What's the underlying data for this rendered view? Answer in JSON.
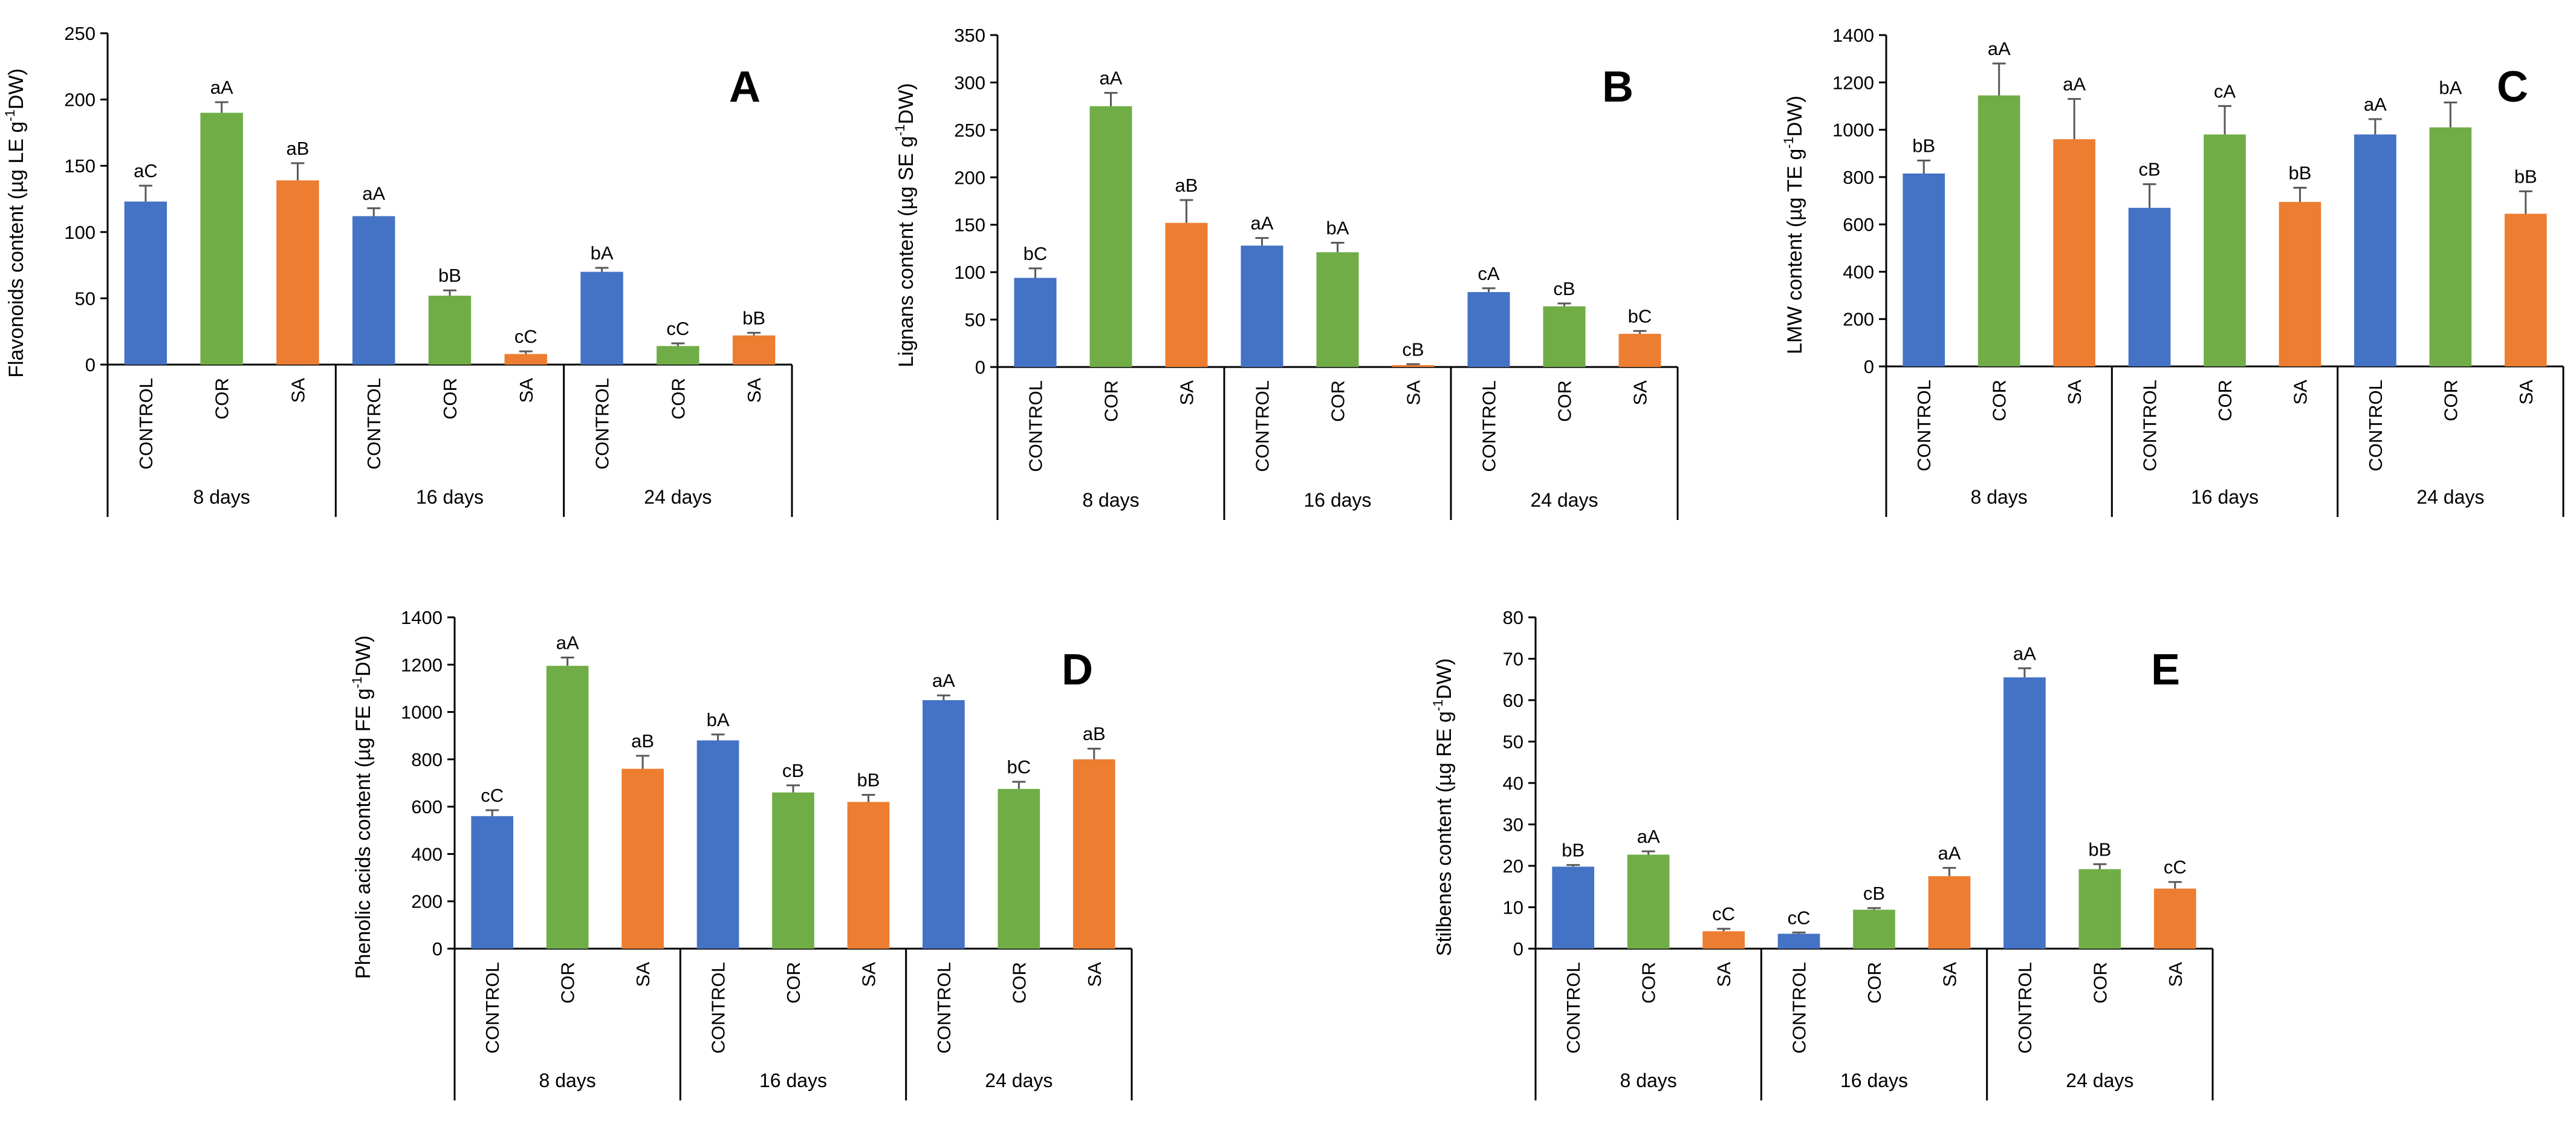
{
  "colors": {
    "CONTROL": "#4472C4",
    "COR": "#70AD47",
    "SA": "#ED7D31"
  },
  "chart_data": [
    {
      "panel": "A",
      "type": "bar",
      "ylabel_parts": [
        "Flavonoids content (µg LE g",
        "-1",
        "DW)"
      ],
      "ylim": [
        0,
        250
      ],
      "yticks": [
        0,
        50,
        100,
        150,
        200,
        250
      ],
      "groups": [
        "8 days",
        "16 days",
        "24 days"
      ],
      "categories": [
        "CONTROL",
        "COR",
        "SA"
      ],
      "values": [
        [
          123,
          190,
          139
        ],
        [
          112,
          52,
          8
        ],
        [
          70,
          14,
          22
        ]
      ],
      "errors": [
        [
          12,
          8,
          13
        ],
        [
          6,
          4,
          2
        ],
        [
          3,
          2,
          2
        ]
      ],
      "labels": [
        [
          "aC",
          "aA",
          "aB"
        ],
        [
          "aA",
          "bB",
          "cC"
        ],
        [
          "bA",
          "cC",
          "bB"
        ]
      ]
    },
    {
      "panel": "B",
      "type": "bar",
      "ylabel_parts": [
        "Lignans content (µg SE g",
        "-1",
        "DW)"
      ],
      "ylim": [
        0,
        350
      ],
      "yticks": [
        0,
        50,
        100,
        150,
        200,
        250,
        300,
        350
      ],
      "groups": [
        "8 days",
        "16 days",
        "24 days"
      ],
      "categories": [
        "CONTROL",
        "COR",
        "SA"
      ],
      "values": [
        [
          94,
          275,
          152
        ],
        [
          128,
          121,
          2
        ],
        [
          79,
          64,
          35
        ]
      ],
      "errors": [
        [
          10,
          14,
          24
        ],
        [
          8,
          10,
          1
        ],
        [
          4,
          3,
          3
        ]
      ],
      "labels": [
        [
          "bC",
          "aA",
          "aB"
        ],
        [
          "aA",
          "bA",
          "cB"
        ],
        [
          "cA",
          "cB",
          "bC"
        ]
      ]
    },
    {
      "panel": "C",
      "type": "bar",
      "ylabel_parts": [
        "LMW content (µg TE g",
        "-1",
        "DW)"
      ],
      "ylim": [
        0,
        1400
      ],
      "yticks": [
        0,
        200,
        400,
        600,
        800,
        1000,
        1200,
        1400
      ],
      "groups": [
        "8 days",
        "16 days",
        "24 days"
      ],
      "categories": [
        "CONTROL",
        "COR",
        "SA"
      ],
      "values": [
        [
          815,
          1145,
          960
        ],
        [
          670,
          980,
          695
        ],
        [
          980,
          1010,
          645
        ]
      ],
      "errors": [
        [
          55,
          135,
          170
        ],
        [
          100,
          120,
          60
        ],
        [
          65,
          105,
          95
        ]
      ],
      "labels": [
        [
          "bB",
          "aA",
          "aA"
        ],
        [
          "cB",
          "cA",
          "bB"
        ],
        [
          "aA",
          "bA",
          "bB"
        ]
      ]
    },
    {
      "panel": "D",
      "type": "bar",
      "ylabel_parts": [
        "Phenolic acids content (µg FE g",
        "-1",
        "DW)"
      ],
      "ylim": [
        0,
        1400
      ],
      "yticks": [
        0,
        200,
        400,
        600,
        800,
        1000,
        1200,
        1400
      ],
      "groups": [
        "8 days",
        "16 days",
        "24 days"
      ],
      "categories": [
        "CONTROL",
        "COR",
        "SA"
      ],
      "values": [
        [
          560,
          1195,
          760
        ],
        [
          880,
          660,
          620
        ],
        [
          1050,
          675,
          800
        ]
      ],
      "errors": [
        [
          25,
          35,
          55
        ],
        [
          25,
          30,
          30
        ],
        [
          20,
          30,
          45
        ]
      ],
      "labels": [
        [
          "cC",
          "aA",
          "aB"
        ],
        [
          "bA",
          "cB",
          "bB"
        ],
        [
          "aA",
          "bC",
          "aB"
        ]
      ]
    },
    {
      "panel": "E",
      "type": "bar",
      "ylabel_parts": [
        "Stilbenes content (µg RE g",
        "-1",
        "DW)"
      ],
      "ylim": [
        0,
        80
      ],
      "yticks": [
        0,
        10,
        20,
        30,
        40,
        50,
        60,
        70,
        80
      ],
      "groups": [
        "8 days",
        "16 days",
        "24 days"
      ],
      "categories": [
        "CONTROL",
        "COR",
        "SA"
      ],
      "values": [
        [
          19.8,
          22.7,
          4.2
        ],
        [
          3.6,
          9.4,
          17.5
        ],
        [
          65.5,
          19.2,
          14.5
        ]
      ],
      "errors": [
        [
          0.4,
          0.8,
          0.6
        ],
        [
          0.3,
          0.4,
          2.0
        ],
        [
          2.2,
          1.2,
          1.6
        ]
      ],
      "labels": [
        [
          "bB",
          "aA",
          "cC"
        ],
        [
          "cC",
          "cB",
          "aA"
        ],
        [
          "aA",
          "bB",
          "cC"
        ]
      ]
    }
  ]
}
